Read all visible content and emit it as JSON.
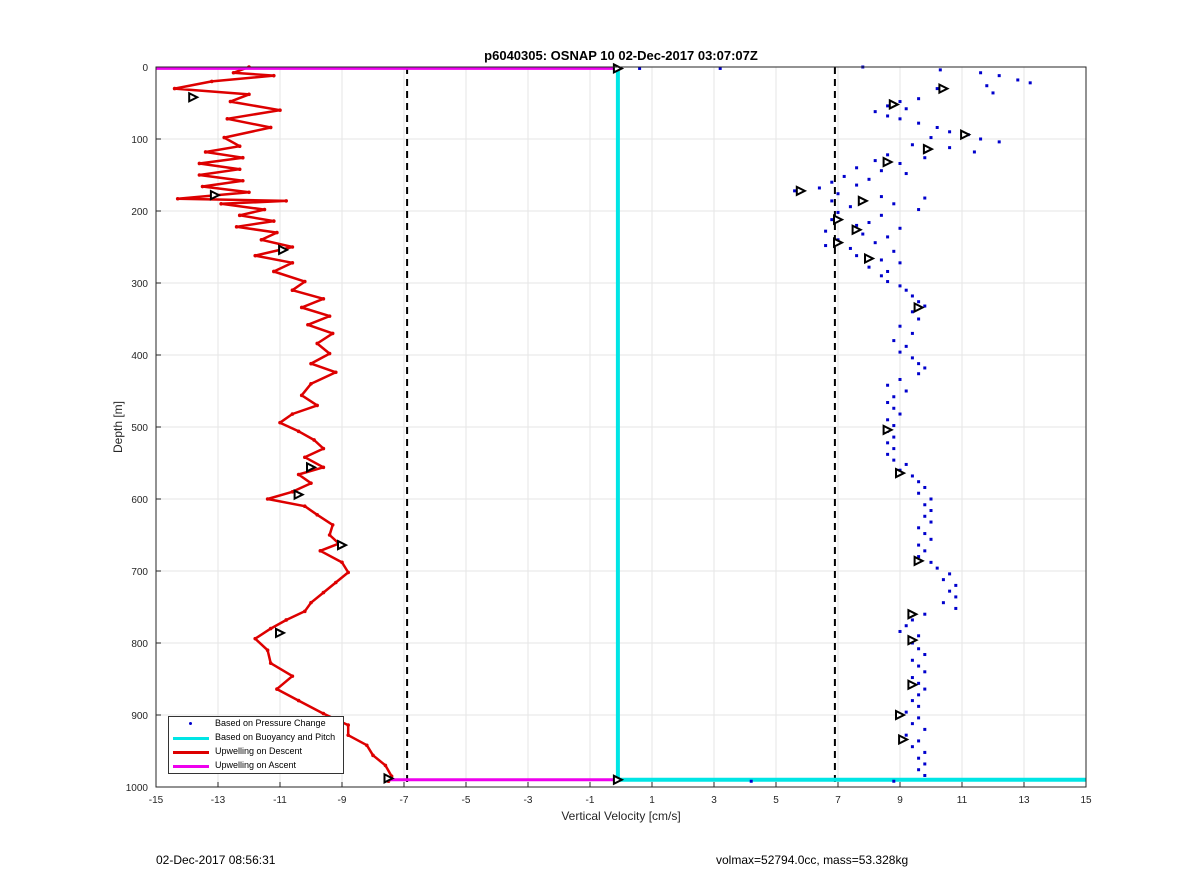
{
  "chart_data": {
    "type": "scatter",
    "title": "p6040305: OSNAP 10 02-Dec-2017 03:07:07Z",
    "xlabel": "Vertical Velocity [cm/s]",
    "ylabel": "Depth [m]",
    "xlim": [
      -15,
      15
    ],
    "ylim": [
      0,
      1000
    ],
    "y_reversed": true,
    "xticks": [
      -15,
      -13,
      -11,
      -9,
      -7,
      -5,
      -3,
      -1,
      1,
      3,
      5,
      7,
      9,
      11,
      13,
      15
    ],
    "yticks": [
      0,
      100,
      200,
      300,
      400,
      500,
      600,
      700,
      800,
      900,
      1000
    ],
    "grid": true,
    "legend_position": "bottom-left",
    "legend": [
      {
        "label": "Based on Pressure Change",
        "color": "#0000cc",
        "style": "dot"
      },
      {
        "label": "Based on Buoyancy and Pitch",
        "color": "#00e5e5",
        "style": "line"
      },
      {
        "label": "Upwelling on Descent",
        "color": "#dd0000",
        "style": "line"
      },
      {
        "label": "Upwelling on Ascent",
        "color": "#ee00ee",
        "style": "line"
      }
    ],
    "reference_lines_x": [
      -6.9,
      6.9
    ],
    "series": [
      {
        "name": "Upwelling on Descent",
        "color": "#dd0000",
        "points": [
          [
            -12.0,
            0
          ],
          [
            -12.5,
            8
          ],
          [
            -11.2,
            12
          ],
          [
            -13.2,
            20
          ],
          [
            -14.4,
            30
          ],
          [
            -12.0,
            38
          ],
          [
            -12.6,
            48
          ],
          [
            -11.0,
            60
          ],
          [
            -12.7,
            72
          ],
          [
            -11.3,
            84
          ],
          [
            -12.8,
            98
          ],
          [
            -12.3,
            110
          ],
          [
            -13.4,
            118
          ],
          [
            -12.2,
            126
          ],
          [
            -13.6,
            134
          ],
          [
            -12.3,
            142
          ],
          [
            -13.6,
            150
          ],
          [
            -12.2,
            158
          ],
          [
            -13.5,
            166
          ],
          [
            -12.0,
            174
          ],
          [
            -14.3,
            183
          ],
          [
            -10.8,
            186
          ],
          [
            -12.9,
            190
          ],
          [
            -11.5,
            198
          ],
          [
            -12.3,
            206
          ],
          [
            -11.2,
            214
          ],
          [
            -12.4,
            222
          ],
          [
            -11.1,
            230
          ],
          [
            -11.6,
            240
          ],
          [
            -10.6,
            250
          ],
          [
            -11.8,
            262
          ],
          [
            -10.6,
            272
          ],
          [
            -11.2,
            284
          ],
          [
            -10.2,
            298
          ],
          [
            -10.6,
            310
          ],
          [
            -9.6,
            322
          ],
          [
            -10.3,
            334
          ],
          [
            -9.4,
            346
          ],
          [
            -10.1,
            358
          ],
          [
            -9.3,
            370
          ],
          [
            -9.8,
            384
          ],
          [
            -9.4,
            398
          ],
          [
            -10.0,
            412
          ],
          [
            -9.2,
            424
          ],
          [
            -10.0,
            440
          ],
          [
            -10.3,
            456
          ],
          [
            -9.8,
            470
          ],
          [
            -10.6,
            482
          ],
          [
            -11.0,
            494
          ],
          [
            -10.4,
            506
          ],
          [
            -9.9,
            518
          ],
          [
            -9.6,
            530
          ],
          [
            -10.2,
            542
          ],
          [
            -9.6,
            556
          ],
          [
            -10.4,
            566
          ],
          [
            -10.0,
            578
          ],
          [
            -10.6,
            590
          ],
          [
            -11.4,
            600
          ],
          [
            -10.2,
            610
          ],
          [
            -9.8,
            622
          ],
          [
            -9.3,
            636
          ],
          [
            -9.4,
            650
          ],
          [
            -9.1,
            662
          ],
          [
            -9.7,
            672
          ],
          [
            -9.0,
            688
          ],
          [
            -8.8,
            702
          ],
          [
            -9.2,
            716
          ],
          [
            -9.6,
            730
          ],
          [
            -10.0,
            744
          ],
          [
            -10.2,
            756
          ],
          [
            -10.8,
            768
          ],
          [
            -11.3,
            780
          ],
          [
            -11.8,
            794
          ],
          [
            -11.4,
            810
          ],
          [
            -11.3,
            828
          ],
          [
            -10.6,
            846
          ],
          [
            -11.1,
            864
          ],
          [
            -10.4,
            880
          ],
          [
            -9.6,
            898
          ],
          [
            -8.8,
            914
          ],
          [
            -8.8,
            928
          ],
          [
            -8.2,
            942
          ],
          [
            -8.0,
            956
          ],
          [
            -7.6,
            970
          ],
          [
            -7.4,
            985
          ],
          [
            -7.5,
            992
          ]
        ],
        "markers": [
          [
            -13.8,
            42
          ],
          [
            -13.1,
            178
          ],
          [
            -10.9,
            254
          ],
          [
            -10.0,
            556
          ],
          [
            -10.4,
            594
          ],
          [
            -9.0,
            664
          ],
          [
            -11.0,
            786
          ],
          [
            -7.5,
            988
          ]
        ]
      },
      {
        "name": "Upwelling on Ascent",
        "color": "#ee00ee",
        "points": [
          [
            -15,
            2
          ],
          [
            -0.1,
            2
          ]
        ],
        "bottom_line": [
          [
            -7.5,
            990
          ],
          [
            -0.1,
            990
          ]
        ]
      },
      {
        "name": "Based on Buoyancy and Pitch",
        "color": "#00e5e5",
        "points": [
          [
            -0.1,
            2
          ],
          [
            -0.1,
            990
          ],
          [
            15,
            990
          ]
        ]
      },
      {
        "name": "Based on Pressure Change",
        "color": "#0000cc",
        "points": [
          [
            7.8,
            0
          ],
          [
            10.3,
            4
          ],
          [
            11.6,
            8
          ],
          [
            12.2,
            12
          ],
          [
            12.8,
            18
          ],
          [
            13.2,
            22
          ],
          [
            11.8,
            26
          ],
          [
            10.2,
            30
          ],
          [
            12.0,
            36
          ],
          [
            9.6,
            44
          ],
          [
            9.0,
            48
          ],
          [
            8.6,
            54
          ],
          [
            9.2,
            58
          ],
          [
            8.2,
            62
          ],
          [
            8.6,
            68
          ],
          [
            9.0,
            72
          ],
          [
            9.6,
            78
          ],
          [
            10.2,
            84
          ],
          [
            10.6,
            90
          ],
          [
            11.2,
            94
          ],
          [
            10.0,
            98
          ],
          [
            11.6,
            100
          ],
          [
            12.2,
            104
          ],
          [
            9.4,
            108
          ],
          [
            10.6,
            112
          ],
          [
            11.4,
            118
          ],
          [
            8.6,
            122
          ],
          [
            9.8,
            126
          ],
          [
            8.2,
            130
          ],
          [
            9.0,
            134
          ],
          [
            7.6,
            140
          ],
          [
            8.4,
            144
          ],
          [
            9.2,
            148
          ],
          [
            7.2,
            152
          ],
          [
            8.0,
            156
          ],
          [
            6.8,
            160
          ],
          [
            7.6,
            164
          ],
          [
            6.4,
            168
          ],
          [
            5.6,
            172
          ],
          [
            7.0,
            176
          ],
          [
            8.4,
            180
          ],
          [
            9.8,
            182
          ],
          [
            6.8,
            186
          ],
          [
            8.8,
            190
          ],
          [
            7.4,
            194
          ],
          [
            9.6,
            198
          ],
          [
            7.0,
            202
          ],
          [
            8.4,
            206
          ],
          [
            6.8,
            212
          ],
          [
            8.0,
            216
          ],
          [
            7.6,
            220
          ],
          [
            9.0,
            224
          ],
          [
            6.6,
            228
          ],
          [
            7.8,
            232
          ],
          [
            8.6,
            236
          ],
          [
            7.0,
            240
          ],
          [
            8.2,
            244
          ],
          [
            6.6,
            248
          ],
          [
            7.4,
            252
          ],
          [
            8.8,
            256
          ],
          [
            7.6,
            262
          ],
          [
            8.4,
            268
          ],
          [
            9.0,
            272
          ],
          [
            8.0,
            278
          ],
          [
            8.6,
            284
          ],
          [
            8.4,
            290
          ],
          [
            8.6,
            298
          ],
          [
            9.0,
            304
          ],
          [
            9.2,
            310
          ],
          [
            9.4,
            318
          ],
          [
            9.6,
            326
          ],
          [
            9.8,
            332
          ],
          [
            9.4,
            340
          ],
          [
            9.6,
            350
          ],
          [
            9.0,
            360
          ],
          [
            9.4,
            370
          ],
          [
            8.8,
            380
          ],
          [
            9.2,
            388
          ],
          [
            9.0,
            396
          ],
          [
            9.4,
            404
          ],
          [
            9.6,
            412
          ],
          [
            9.8,
            418
          ],
          [
            9.6,
            426
          ],
          [
            9.0,
            434
          ],
          [
            8.6,
            442
          ],
          [
            9.2,
            450
          ],
          [
            8.8,
            458
          ],
          [
            8.6,
            466
          ],
          [
            8.8,
            474
          ],
          [
            9.0,
            482
          ],
          [
            8.6,
            490
          ],
          [
            8.8,
            498
          ],
          [
            8.6,
            506
          ],
          [
            8.8,
            514
          ],
          [
            8.6,
            522
          ],
          [
            8.8,
            530
          ],
          [
            8.6,
            538
          ],
          [
            8.8,
            546
          ],
          [
            9.2,
            552
          ],
          [
            9.0,
            560
          ],
          [
            9.4,
            568
          ],
          [
            9.6,
            576
          ],
          [
            9.8,
            584
          ],
          [
            9.6,
            592
          ],
          [
            10.0,
            600
          ],
          [
            9.8,
            608
          ],
          [
            10.0,
            616
          ],
          [
            9.8,
            624
          ],
          [
            10.0,
            632
          ],
          [
            9.6,
            640
          ],
          [
            9.8,
            648
          ],
          [
            10.0,
            656
          ],
          [
            9.6,
            664
          ],
          [
            9.8,
            672
          ],
          [
            9.6,
            680
          ],
          [
            10.0,
            688
          ],
          [
            10.2,
            696
          ],
          [
            10.6,
            704
          ],
          [
            10.4,
            712
          ],
          [
            10.8,
            720
          ],
          [
            10.6,
            728
          ],
          [
            10.8,
            736
          ],
          [
            10.4,
            744
          ],
          [
            10.8,
            752
          ],
          [
            9.8,
            760
          ],
          [
            9.4,
            768
          ],
          [
            9.2,
            776
          ],
          [
            9.0,
            784
          ],
          [
            9.6,
            790
          ],
          [
            9.4,
            800
          ],
          [
            9.6,
            808
          ],
          [
            9.8,
            816
          ],
          [
            9.4,
            824
          ],
          [
            9.6,
            832
          ],
          [
            9.8,
            840
          ],
          [
            9.4,
            848
          ],
          [
            9.6,
            856
          ],
          [
            9.8,
            864
          ],
          [
            9.6,
            872
          ],
          [
            9.4,
            880
          ],
          [
            9.6,
            888
          ],
          [
            9.2,
            896
          ],
          [
            9.6,
            904
          ],
          [
            9.4,
            912
          ],
          [
            9.8,
            920
          ],
          [
            9.2,
            928
          ],
          [
            9.6,
            936
          ],
          [
            9.4,
            944
          ],
          [
            9.8,
            952
          ],
          [
            9.6,
            960
          ],
          [
            9.8,
            968
          ],
          [
            9.6,
            976
          ],
          [
            9.8,
            984
          ],
          [
            8.8,
            992
          ],
          [
            4.2,
            992
          ],
          [
            3.2,
            2
          ],
          [
            0.6,
            2
          ]
        ],
        "markers": [
          [
            10.4,
            30
          ],
          [
            8.8,
            52
          ],
          [
            11.1,
            94
          ],
          [
            9.9,
            114
          ],
          [
            8.6,
            132
          ],
          [
            5.8,
            172
          ],
          [
            7.8,
            186
          ],
          [
            7.0,
            212
          ],
          [
            7.6,
            226
          ],
          [
            7.0,
            244
          ],
          [
            8.0,
            266
          ],
          [
            9.6,
            334
          ],
          [
            8.6,
            504
          ],
          [
            9.0,
            564
          ],
          [
            9.6,
            686
          ],
          [
            9.4,
            760
          ],
          [
            9.4,
            796
          ],
          [
            9.4,
            858
          ],
          [
            9.0,
            900
          ],
          [
            9.1,
            934
          ]
        ]
      }
    ]
  },
  "footer": {
    "timestamp": "02-Dec-2017 08:56:31",
    "info": "volmax=52794.0cc, mass=53.328kg"
  }
}
